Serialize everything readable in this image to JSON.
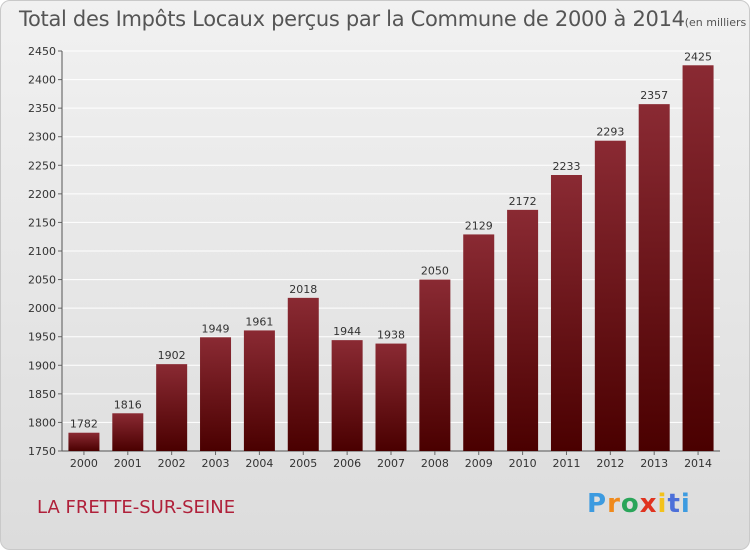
{
  "chart_data": {
    "type": "bar",
    "title": "Total des Impôts Locaux perçus par la Commune de 2000 à 2014",
    "subtitle": "(en milliers d'€)",
    "categories": [
      "2000",
      "2001",
      "2002",
      "2003",
      "2004",
      "2005",
      "2006",
      "2007",
      "2008",
      "2009",
      "2010",
      "2011",
      "2012",
      "2013",
      "2014"
    ],
    "values": [
      1782,
      1816,
      1902,
      1949,
      1961,
      2018,
      1944,
      1938,
      2050,
      2129,
      2172,
      2233,
      2293,
      2357,
      2425
    ],
    "ylim": [
      1750,
      2450
    ],
    "yticks": [
      1750,
      1800,
      1850,
      1900,
      1950,
      2000,
      2050,
      2100,
      2150,
      2200,
      2250,
      2300,
      2350,
      2400,
      2450
    ],
    "grid": true,
    "xlabel": "",
    "ylabel": ""
  },
  "footer": {
    "commune": "LA FRETTE-SUR-SEINE",
    "logo_letters": [
      "P",
      "r",
      "o",
      "x",
      "i",
      "t",
      "i"
    ]
  },
  "colors": {
    "bar_top": "#8a2a33",
    "bar_bottom": "#4a0000",
    "commune": "#b0203a",
    "logo": [
      "#3d9be0",
      "#f08a1c",
      "#2aa55a",
      "#e0331f",
      "#f3c21b",
      "#4c6fd9",
      "#3d9be0"
    ]
  }
}
